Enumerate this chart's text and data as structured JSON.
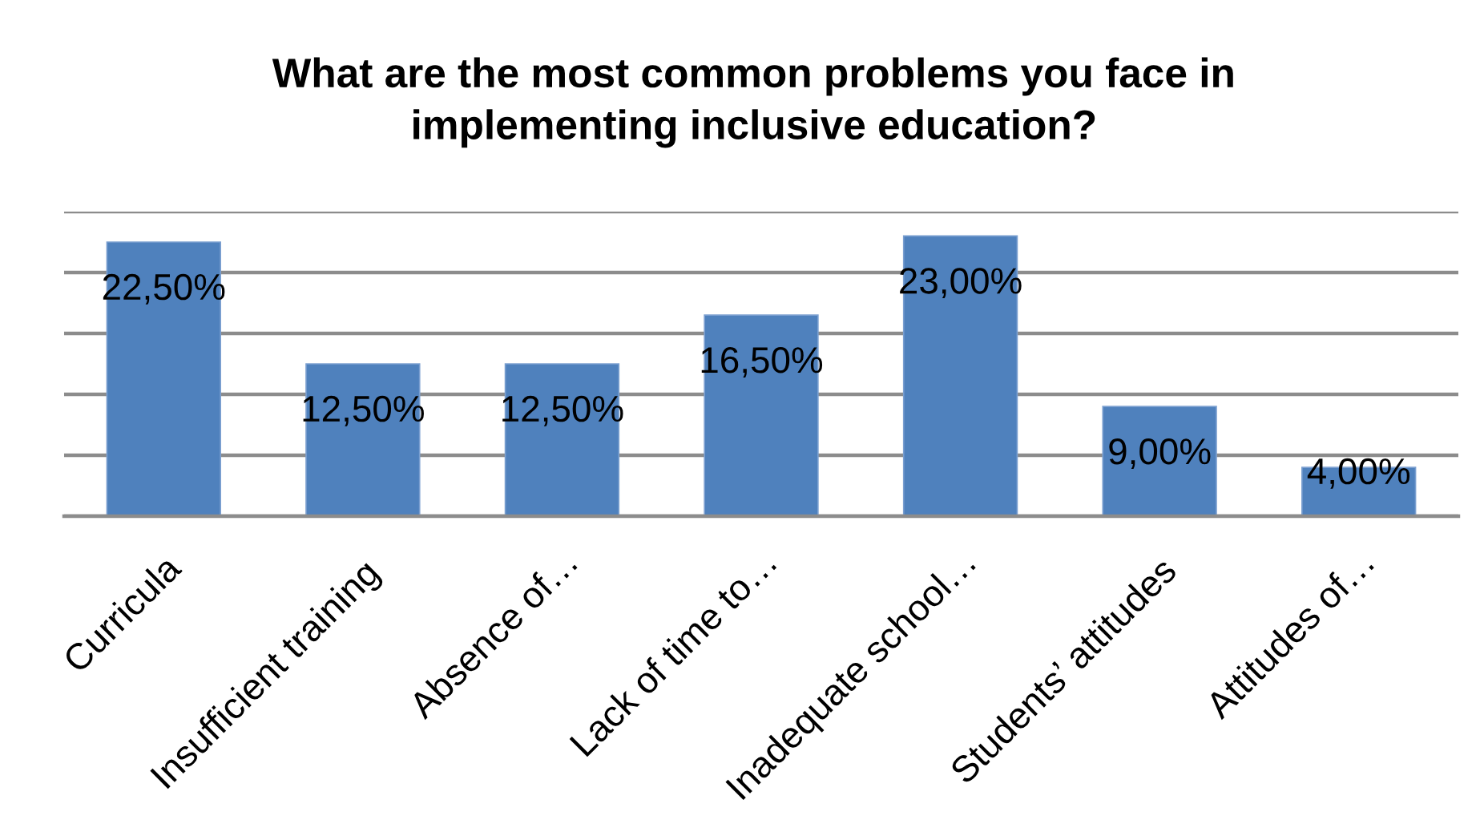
{
  "chart_data": {
    "type": "bar",
    "title": "What are the most common problems you face in\nimplementing inclusive education?",
    "categories": [
      "Curricula",
      "Insufficient training",
      "Absence of…",
      "Lack of time to…",
      "Inadequate school…",
      "Students’ attitudes",
      "Attitudes of…"
    ],
    "values": [
      22.5,
      12.5,
      12.5,
      16.5,
      23,
      9,
      4
    ],
    "color": "#4f81bd",
    "value_labels": [
      "22,50%",
      "12,50%",
      "12,50%",
      "16,50%",
      "23,00%",
      "9,00%",
      "4,00%"
    ],
    "ylim": [
      0,
      25
    ],
    "yticks": [
      {
        "value": 0,
        "label": null
      },
      {
        "value": 5,
        "label": null
      },
      {
        "value": 10,
        "label": null
      },
      {
        "value": 15,
        "label": null
      },
      {
        "value": 20,
        "label": null
      },
      {
        "value": 25,
        "label": null
      }
    ],
    "grid": "y",
    "tick_labels": "x"
  }
}
